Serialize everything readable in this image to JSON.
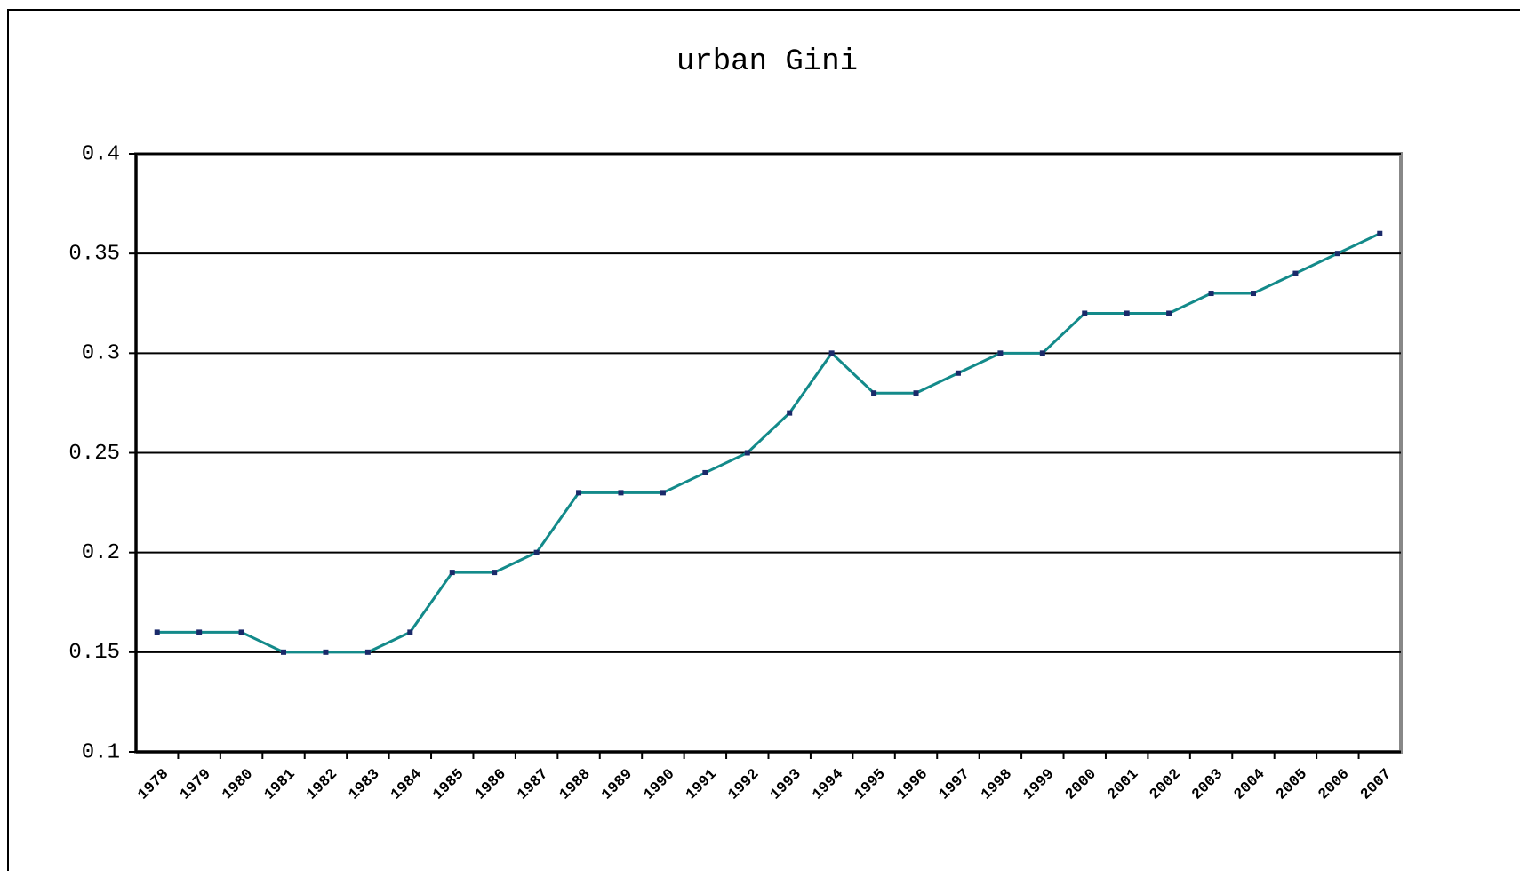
{
  "chart_data": {
    "type": "line",
    "title": "urban Gini",
    "categories": [
      "1978",
      "1979",
      "1980",
      "1981",
      "1982",
      "1983",
      "1984",
      "1985",
      "1986",
      "1987",
      "1988",
      "1989",
      "1990",
      "1991",
      "1992",
      "1993",
      "1994",
      "1995",
      "1996",
      "1997",
      "1998",
      "1999",
      "2000",
      "2001",
      "2002",
      "2003",
      "2004",
      "2005",
      "2006",
      "2007"
    ],
    "values": [
      0.16,
      0.16,
      0.16,
      0.15,
      0.15,
      0.15,
      0.16,
      0.19,
      0.19,
      0.2,
      0.23,
      0.23,
      0.23,
      0.24,
      0.25,
      0.27,
      0.3,
      0.28,
      0.28,
      0.29,
      0.3,
      0.3,
      0.32,
      0.32,
      0.32,
      0.33,
      0.33,
      0.34,
      0.35,
      0.36
    ],
    "color": "#138a8a",
    "marker_color": "#1a2a6a",
    "ylim": [
      0.1,
      0.4
    ],
    "yticks": [
      0.1,
      0.15,
      0.2,
      0.25,
      0.3,
      0.35,
      0.4
    ],
    "grid": true
  }
}
